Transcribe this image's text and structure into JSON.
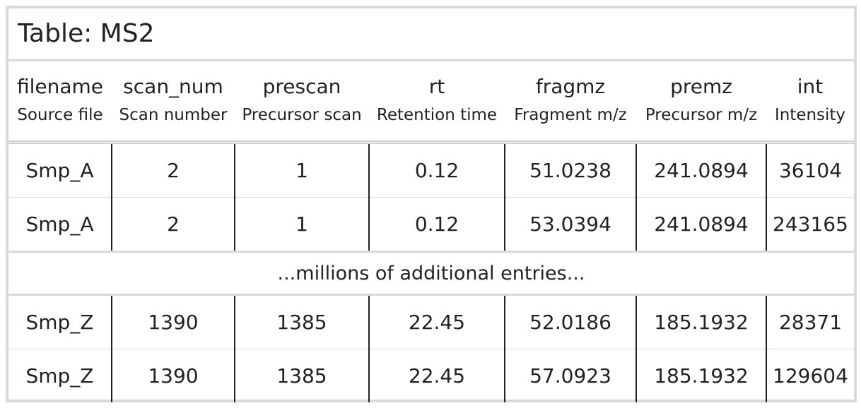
{
  "table": {
    "title": "Table: MS2",
    "columns": [
      {
        "name": "filename",
        "description": "Source file"
      },
      {
        "name": "scan_num",
        "description": "Scan number"
      },
      {
        "name": "prescan",
        "description": "Precursor scan"
      },
      {
        "name": "rt",
        "description": "Retention time"
      },
      {
        "name": "fragmz",
        "description": "Fragment m/z"
      },
      {
        "name": "premz",
        "description": "Precursor m/z"
      },
      {
        "name": "int",
        "description": "Intensity"
      }
    ],
    "rows_top": [
      [
        "Smp_A",
        "2",
        "1",
        "0.12",
        "51.0238",
        "241.0894",
        "36104"
      ],
      [
        "Smp_A",
        "2",
        "1",
        "0.12",
        "53.0394",
        "241.0894",
        "243165"
      ]
    ],
    "gap_text": "...millions of additional entries...",
    "rows_bottom": [
      [
        "Smp_Z",
        "1390",
        "1385",
        "22.45",
        "52.0186",
        "185.1932",
        "28371"
      ],
      [
        "Smp_Z",
        "1390",
        "1385",
        "22.45",
        "57.0923",
        "185.1932",
        "129604"
      ]
    ]
  }
}
